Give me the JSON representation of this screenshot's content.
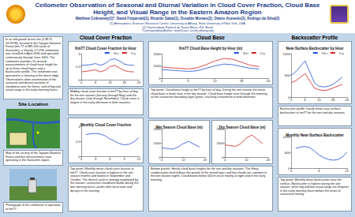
{
  "poster": {
    "title": "Ceilometer Observation of Seasonal and Diurnal Variation in Cloud Cover Fraction, Cloud Base Height, and Visual Range in the Eastern Amazon Region",
    "authors": "Matthew Czikowsky(1)*, David Fitzjarrald(1), Ricardo Sakai(1), Osvaldo Moraes(2), Otávio Acevedo(2), Rodrigo da Silva(2)",
    "affiliations": [
      "(1) Atmospheric Sciences Research Center, University at Albany, State University of New York, USA",
      "(2) Universidade Federal de Santa Maria, RS, Brazil",
      "*Corresponding Author: matt@asrc.cestm.albany.edu"
    ],
    "intro": "In an old-growth forest site (2.86°S, 54.96°W), located in the Tapajós National Forest (km 77 of BR-163 south of Santarém), a Vaisala CT-25K ceilometer was installed in April 2000 and operated continuously through June 2005. The ceilometer provides 15-second measurements of cloud base height for up to three cloud layers and a backscatter profile. The ceilometer was operated in a clearing at the forest edge. Observations allow examination of the seasonal and diurnal variation of cloudiness over the forest, and of fog and visual range in the early morning hours.",
    "site_header": "Site Location",
    "map_caption": "Map of the vicinity of the Tapajós National Forest and flux measurement sites operating in the Santarém region.",
    "photo_caption": "Photograph of the ceilometer in operation at km77.",
    "sections": [
      {
        "header": "Cloud Cover Fraction",
        "texts": [
          "Midday cloud cover fraction at km77 by hour of day for the wet season (January through May) and the dry season (July through November). Cloud cover is largest in the early afternoon in both seasons.",
          "Top panel: Monthly mean cloud cover fraction at km77. Cloud cover fraction is highest in the wet season months and lowest in September and October. The diurnal cycle is strongly modulated by the season: convective cloudiness builds during the late morning hours, peaks after local noon and decays in the evening."
        ]
      },
      {
        "header": "Cloud Base",
        "texts": [
          "Top panel: Cloud base height at km77 by hour of day. During the wet season the mean cloud base is lower than in the dry season. Cloud base height rises through the morning as the convective boundary layer grows, reaching a maximum in mid-afternoon.",
          "Bottom panels: Hourly cloud base heights for the wet and dry seasons. The lifting condensation level follows the growth of the mixed layer, and low clouds are common in the wet season nights. Cloud bases below 500 m occur mainly at night and in the early morning."
        ]
      },
      {
        "header": "Backscatter Profile",
        "texts": [
          "Backscatter profile: hourly mean near-surface backscatter at km77 for the wet and dry seasons.",
          "Top panel: Monthly mean backscatter near the surface. Backscatter is highest during the wet season, when fog and low visual range are frequent in the early morning hours before the onset of convective mixing."
        ]
      }
    ]
  },
  "chart_data": [
    {
      "type": "line",
      "title": "Km77 Cloud Cover Fraction by Hour",
      "x": [
        0,
        2,
        4,
        6,
        8,
        10,
        12,
        14,
        16,
        18,
        20,
        22
      ],
      "series": [
        {
          "name": "Wet",
          "color": "#1f4fd8",
          "values": [
            0.55,
            0.56,
            0.58,
            0.62,
            0.55,
            0.62,
            0.76,
            0.8,
            0.72,
            0.6,
            0.56,
            0.55
          ]
        },
        {
          "name": "Dry",
          "color": "#d62020",
          "values": [
            0.3,
            0.32,
            0.35,
            0.38,
            0.3,
            0.36,
            0.5,
            0.55,
            0.45,
            0.35,
            0.31,
            0.3
          ]
        }
      ],
      "xlim": [
        0,
        24
      ],
      "xticks": [
        0,
        6,
        12,
        18,
        24
      ],
      "ylim": [
        0,
        1
      ],
      "yticks": [
        0,
        0.5,
        1
      ],
      "grid": false,
      "legend": "top-right"
    },
    {
      "type": "line",
      "title": "Monthly Cloud Cover Fraction",
      "x": [
        1,
        2,
        3,
        4,
        5,
        6,
        7,
        8,
        9,
        10,
        11,
        12
      ],
      "values": [
        0.72,
        0.75,
        0.76,
        0.74,
        0.68,
        0.58,
        0.5,
        0.42,
        0.38,
        0.4,
        0.48,
        0.62
      ],
      "color": "#1f4fd8",
      "xlim": [
        0,
        12
      ],
      "xticks": [
        0,
        3,
        6,
        9,
        12
      ],
      "ylim": [
        0,
        1
      ],
      "yticks": [
        0,
        0.5,
        1
      ],
      "grid": false
    },
    {
      "type": "line",
      "title": "Km77 Cloud Base Height by Hour (m)",
      "x": [
        0,
        2,
        4,
        6,
        8,
        10,
        12,
        14,
        16,
        18,
        20,
        22
      ],
      "series": [
        {
          "name": "Wet",
          "color": "#1f4fd8",
          "values": [
            700,
            650,
            600,
            550,
            600,
            800,
            1000,
            1150,
            1100,
            950,
            800,
            750
          ]
        },
        {
          "name": "Dry",
          "color": "#d62020",
          "values": [
            900,
            850,
            800,
            750,
            850,
            1100,
            1400,
            1600,
            1550,
            1300,
            1050,
            950
          ]
        }
      ],
      "xlim": [
        0,
        24
      ],
      "xticks": [
        0,
        6,
        12,
        18,
        24
      ],
      "ylim": [
        0,
        2000
      ],
      "yticks": [
        0,
        1000,
        2000
      ],
      "grid": false,
      "legend": "top-right"
    },
    {
      "type": "line",
      "title": "Wet Season Cloud Base (m)",
      "x": [
        0,
        3,
        6,
        9,
        12,
        15,
        18,
        21
      ],
      "values": [
        650,
        600,
        550,
        700,
        950,
        1100,
        900,
        700
      ],
      "color": "#1f4fd8",
      "xlim": [
        0,
        24
      ],
      "xticks": [
        0,
        12,
        24
      ],
      "ylim": [
        0,
        2000
      ],
      "yticks": [
        0,
        1000,
        2000
      ],
      "grid": false
    },
    {
      "type": "line",
      "title": "Dry Season Cloud Base (m)",
      "x": [
        0,
        3,
        6,
        9,
        12,
        15,
        18,
        21
      ],
      "values": [
        850,
        800,
        750,
        950,
        1350,
        1550,
        1250,
        950
      ],
      "color": "#d62020",
      "xlim": [
        0,
        24
      ],
      "xticks": [
        0,
        12,
        24
      ],
      "ylim": [
        0,
        2000
      ],
      "yticks": [
        0,
        1000,
        2000
      ],
      "grid": false
    },
    {
      "type": "line",
      "title": "Near-Surface Backscatter by Hour",
      "x": [
        0,
        2,
        4,
        6,
        8,
        10,
        12,
        14,
        16,
        18,
        20,
        22
      ],
      "series": [
        {
          "name": "Wet",
          "color": "#1f4fd8",
          "values": [
            600,
            700,
            850,
            1000,
            700,
            400,
            300,
            280,
            300,
            350,
            450,
            550
          ]
        },
        {
          "name": "Dry",
          "color": "#d62020",
          "values": [
            400,
            450,
            550,
            650,
            450,
            250,
            200,
            180,
            200,
            250,
            300,
            350
          ]
        }
      ],
      "xlim": [
        0,
        24
      ],
      "xticks": [
        0,
        6,
        12,
        18,
        24
      ],
      "ylim": [
        0,
        1200
      ],
      "yticks": [
        0,
        600,
        1200
      ],
      "grid": false,
      "legend": "top-right"
    },
    {
      "type": "line",
      "title": "Monthly Near-Surface Backscatter",
      "x": [
        1,
        2,
        3,
        4,
        5,
        6,
        7,
        8,
        9,
        10,
        11,
        12
      ],
      "values": [
        750,
        800,
        820,
        780,
        650,
        500,
        400,
        330,
        300,
        320,
        420,
        600
      ],
      "color": "#1f4fd8",
      "xlim": [
        0,
        12
      ],
      "xticks": [
        0,
        6,
        12
      ],
      "ylim": [
        0,
        1200
      ],
      "yticks": [
        0,
        600,
        1200
      ],
      "grid": false
    }
  ]
}
